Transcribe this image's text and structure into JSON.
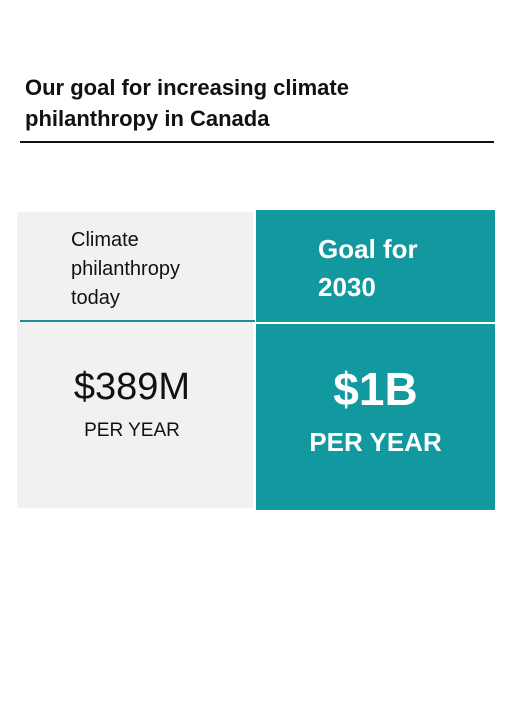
{
  "header": {
    "title": "Our goal for increasing climate philanthropy in Canada"
  },
  "panels": [
    {
      "label": "Climate philanthropy today",
      "value": "$389M",
      "unit": "PER YEAR"
    },
    {
      "label": "Goal for 2030",
      "value": "$1B",
      "unit": "PER YEAR"
    }
  ]
}
